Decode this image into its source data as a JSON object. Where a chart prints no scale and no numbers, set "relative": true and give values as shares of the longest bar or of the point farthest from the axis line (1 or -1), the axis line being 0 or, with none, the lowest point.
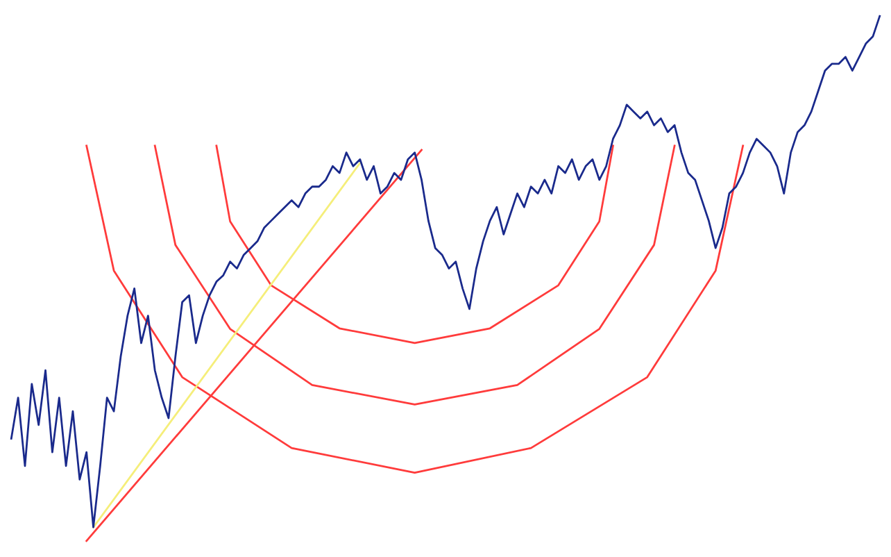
{
  "chart_data": {
    "type": "line",
    "relative": true,
    "grid": false,
    "legend": false,
    "line_style": "solid",
    "categories": [
      null,
      null,
      null,
      null,
      null,
      null,
      null,
      null,
      null,
      null,
      null,
      null,
      null,
      null,
      null,
      null,
      null,
      null,
      null,
      null,
      null,
      null,
      null,
      null,
      null,
      null,
      null,
      null,
      null,
      null,
      null,
      null,
      null,
      null,
      null,
      null,
      null,
      null,
      null,
      null,
      null,
      null,
      null,
      null,
      null,
      null,
      null,
      null,
      null,
      null,
      null,
      null,
      null,
      null,
      null,
      null,
      null,
      null,
      null,
      null,
      null,
      null,
      null,
      null,
      null,
      null,
      null,
      null,
      null,
      null,
      null,
      null,
      null,
      null,
      null,
      null,
      null,
      null,
      null,
      null,
      null,
      null,
      null,
      null,
      null,
      null,
      null,
      null,
      null,
      null,
      null,
      null,
      null,
      null,
      null,
      null,
      null,
      null,
      null,
      null,
      null,
      null,
      null,
      null,
      null,
      null,
      null,
      null,
      null,
      null,
      null,
      null,
      null,
      null,
      null,
      null,
      null,
      null,
      null,
      null,
      null,
      null,
      null,
      null,
      null,
      null,
      null,
      null
    ],
    "series": [
      {
        "color": "#ff3b3b",
        "values": [
          null,
          null,
          null,
          null,
          null,
          null,
          null,
          null,
          null,
          null,
          null,
          null,
          null,
          null,
          null,
          null,
          null,
          null,
          null,
          null,
          null,
          null,
          null,
          null,
          null,
          null,
          null,
          null,
          null,
          null,
          0.753,
          null,
          0.609,
          null,
          null,
          null,
          null,
          null,
          0.487,
          null,
          null,
          null,
          null,
          null,
          null,
          null,
          null,
          null,
          0.405,
          null,
          null,
          null,
          null,
          null,
          null,
          null,
          null,
          null,
          null,
          0.377,
          null,
          null,
          null,
          null,
          null,
          null,
          null,
          null,
          null,
          null,
          0.405,
          null,
          null,
          null,
          null,
          null,
          null,
          null,
          null,
          null,
          0.487,
          null,
          null,
          null,
          null,
          null,
          0.609,
          null,
          0.753,
          null,
          null,
          null,
          null,
          null,
          null,
          null,
          null,
          null,
          null,
          null,
          null,
          null,
          null,
          null,
          null,
          null,
          null,
          null,
          null,
          null,
          null,
          null,
          null,
          null,
          null,
          null,
          null,
          null,
          null,
          null,
          null,
          null,
          null,
          null,
          null,
          null,
          null,
          null
        ]
      },
      {
        "color": "#ff3b3b",
        "values": [
          null,
          null,
          null,
          null,
          null,
          null,
          null,
          null,
          null,
          null,
          null,
          null,
          null,
          null,
          null,
          null,
          null,
          null,
          null,
          null,
          null,
          0.753,
          null,
          null,
          0.564,
          null,
          null,
          null,
          null,
          null,
          null,
          null,
          0.404,
          null,
          null,
          null,
          null,
          null,
          null,
          null,
          null,
          null,
          null,
          null,
          0.297,
          null,
          null,
          null,
          null,
          null,
          null,
          null,
          null,
          null,
          null,
          null,
          null,
          null,
          null,
          0.26,
          null,
          null,
          null,
          null,
          null,
          null,
          null,
          null,
          null,
          null,
          null,
          null,
          null,
          null,
          0.297,
          null,
          null,
          null,
          null,
          null,
          null,
          null,
          null,
          null,
          null,
          null,
          0.404,
          null,
          null,
          null,
          null,
          null,
          null,
          null,
          0.564,
          null,
          null,
          0.753,
          null,
          null,
          null,
          null,
          null,
          null,
          null,
          null,
          null,
          null,
          null,
          null,
          null,
          null,
          null,
          null,
          null,
          null,
          null,
          null,
          null,
          null,
          null,
          null,
          null,
          null,
          null,
          null,
          null,
          null
        ]
      },
      {
        "color": "#ff3b3b",
        "values": [
          null,
          null,
          null,
          null,
          null,
          null,
          null,
          null,
          null,
          null,
          null,
          0.753,
          null,
          null,
          null,
          0.515,
          null,
          null,
          null,
          null,
          null,
          null,
          null,
          null,
          null,
          0.312,
          null,
          null,
          null,
          null,
          null,
          null,
          null,
          null,
          null,
          null,
          null,
          null,
          null,
          null,
          null,
          0.177,
          null,
          null,
          null,
          null,
          null,
          null,
          null,
          null,
          null,
          null,
          null,
          null,
          null,
          null,
          null,
          null,
          null,
          0.13,
          null,
          null,
          null,
          null,
          null,
          null,
          null,
          null,
          null,
          null,
          null,
          null,
          null,
          null,
          null,
          null,
          0.177,
          null,
          null,
          null,
          null,
          null,
          null,
          null,
          null,
          null,
          null,
          null,
          null,
          null,
          null,
          null,
          null,
          0.312,
          null,
          null,
          null,
          null,
          null,
          null,
          null,
          null,
          null,
          0.515,
          null,
          null,
          null,
          0.753,
          null,
          null,
          null,
          null,
          null,
          null,
          null,
          null,
          null,
          null,
          null,
          null,
          null,
          null,
          null,
          null,
          null,
          null,
          null,
          null
        ]
      },
      {
        "color": "#ff3b3b",
        "values": [
          null,
          null,
          null,
          null,
          null,
          null,
          null,
          null,
          null,
          null,
          null,
          0,
          null,
          null,
          null,
          null,
          null,
          null,
          null,
          null,
          null,
          null,
          null,
          null,
          null,
          null,
          null,
          null,
          null,
          null,
          null,
          null,
          null,
          null,
          null,
          null,
          null,
          null,
          null,
          null,
          null,
          null,
          null,
          null,
          null,
          null,
          null,
          null,
          null,
          null,
          null,
          null,
          null,
          null,
          null,
          null,
          null,
          null,
          null,
          null,
          0.745,
          null,
          null,
          null,
          null,
          null,
          null,
          null,
          null,
          null,
          null,
          null,
          null,
          null,
          null,
          null,
          null,
          null,
          null,
          null,
          null,
          null,
          null,
          null,
          null,
          null,
          null,
          null,
          null,
          null,
          null,
          null,
          null,
          null,
          null,
          null,
          null,
          null,
          null,
          null,
          null,
          null,
          null,
          null,
          null,
          null,
          null,
          null,
          null,
          null,
          null,
          null,
          null,
          null,
          null,
          null,
          null,
          null,
          null,
          null,
          null,
          null,
          null,
          null,
          null,
          null,
          null,
          null
        ]
      },
      {
        "color": "#f5ee7a",
        "values": [
          null,
          null,
          null,
          null,
          null,
          null,
          null,
          null,
          null,
          null,
          null,
          null,
          0.026,
          null,
          null,
          null,
          null,
          null,
          null,
          null,
          null,
          null,
          null,
          null,
          null,
          null,
          null,
          null,
          null,
          null,
          null,
          null,
          null,
          null,
          null,
          null,
          null,
          null,
          null,
          null,
          null,
          null,
          null,
          null,
          null,
          null,
          null,
          null,
          null,
          null,
          null,
          0.72,
          null,
          null,
          null,
          null,
          null,
          null,
          null,
          null,
          null,
          null,
          null,
          null,
          null,
          null,
          null,
          null,
          null,
          null,
          null,
          null,
          null,
          null,
          null,
          null,
          null,
          null,
          null,
          null,
          null,
          null,
          null,
          null,
          null,
          null,
          null,
          null,
          null,
          null,
          null,
          null,
          null,
          null,
          null,
          null,
          null,
          null,
          null,
          null,
          null,
          null,
          null,
          null,
          null,
          null,
          null,
          null,
          null,
          null,
          null,
          null,
          null,
          null,
          null,
          null,
          null,
          null,
          null,
          null,
          null,
          null,
          null,
          null,
          null,
          null,
          null,
          null
        ]
      },
      {
        "color": "#1a2a8c",
        "values": [
          0.195,
          0.273,
          0.143,
          0.299,
          0.221,
          0.325,
          0.169,
          0.273,
          0.143,
          0.247,
          0.117,
          0.169,
          0.026,
          0.143,
          0.273,
          0.247,
          0.351,
          0.429,
          0.481,
          0.377,
          0.429,
          0.325,
          0.273,
          0.234,
          0.351,
          0.455,
          0.468,
          0.377,
          0.429,
          0.468,
          0.494,
          0.506,
          0.532,
          0.519,
          0.545,
          0.558,
          0.571,
          0.597,
          0.61,
          0.623,
          0.636,
          0.649,
          0.636,
          0.662,
          0.675,
          0.675,
          0.688,
          0.714,
          0.701,
          0.74,
          0.714,
          0.727,
          0.688,
          0.714,
          0.662,
          0.675,
          0.701,
          0.688,
          0.727,
          0.74,
          0.688,
          0.61,
          0.558,
          0.545,
          0.519,
          0.532,
          0.481,
          0.442,
          0.519,
          0.571,
          0.61,
          0.636,
          0.584,
          0.623,
          0.662,
          0.636,
          0.675,
          0.662,
          0.688,
          0.662,
          0.714,
          0.701,
          0.727,
          0.688,
          0.714,
          0.727,
          0.688,
          0.714,
          0.766,
          0.792,
          0.831,
          0.818,
          0.805,
          0.818,
          0.792,
          0.805,
          0.779,
          0.792,
          0.74,
          0.701,
          0.688,
          0.649,
          0.61,
          0.558,
          0.597,
          0.662,
          0.675,
          0.701,
          0.74,
          0.766,
          0.753,
          0.74,
          0.714,
          0.662,
          0.74,
          0.779,
          0.792,
          0.818,
          0.857,
          0.896,
          0.909,
          0.909,
          0.922,
          0.896,
          0.922,
          0.948,
          0.961,
          1
        ]
      }
    ]
  }
}
